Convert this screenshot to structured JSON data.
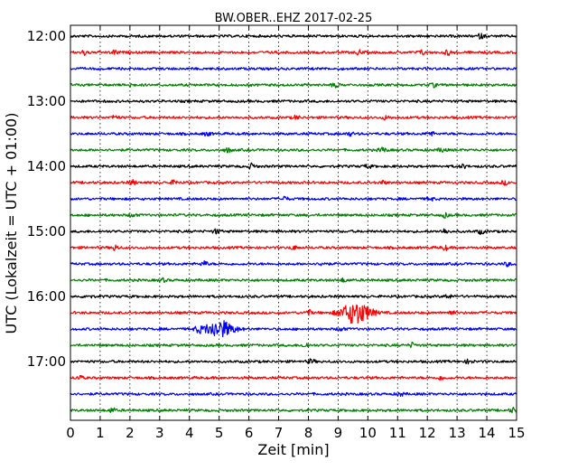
{
  "chart_data": {
    "type": "line",
    "subtype": "helicorder",
    "title": "BW.OBER..EHZ 2017-02-25",
    "xlabel": "Zeit  [min]",
    "ylabel": "UTC (Lokalzeit = UTC + 01:00)",
    "xlim": [
      0,
      15
    ],
    "x_ticks": [
      "0",
      "1",
      "2",
      "3",
      "4",
      "5",
      "6",
      "7",
      "8",
      "9",
      "10",
      "11",
      "12",
      "13",
      "14",
      "15"
    ],
    "y_ticks": [
      "12:00",
      "13:00",
      "14:00",
      "15:00",
      "16:00",
      "17:00"
    ],
    "trace_interval_min": 15,
    "grid": {
      "x": "dotted",
      "y": "none"
    },
    "colors": [
      "#000000",
      "#ff0000",
      "#0000ff",
      "#008000"
    ],
    "traces": [
      {
        "start": "12:00",
        "color": "#000000",
        "events": [
          [
            13.8,
            0.5
          ]
        ]
      },
      {
        "start": "12:15",
        "color": "#ff0000",
        "events": [
          [
            0.5,
            0.6
          ],
          [
            1.5,
            0.5
          ],
          [
            9.7,
            0.5
          ],
          [
            11.8,
            0.5
          ],
          [
            12.7,
            0.6
          ]
        ]
      },
      {
        "start": "12:30",
        "color": "#0000ff",
        "events": []
      },
      {
        "start": "12:45",
        "color": "#008000",
        "events": [
          [
            2.0,
            0.4
          ],
          [
            8.9,
            0.5
          ],
          [
            12.2,
            0.4
          ]
        ]
      },
      {
        "start": "13:00",
        "color": "#000000",
        "events": []
      },
      {
        "start": "13:15",
        "color": "#ff0000",
        "events": [
          [
            1.5,
            0.5
          ],
          [
            7.6,
            0.4
          ],
          [
            10.6,
            0.4
          ]
        ]
      },
      {
        "start": "13:30",
        "color": "#0000ff",
        "events": [
          [
            4.6,
            0.4
          ],
          [
            9.4,
            0.4
          ],
          [
            12.1,
            0.5
          ]
        ]
      },
      {
        "start": "13:45",
        "color": "#008000",
        "events": [
          [
            5.3,
            0.5
          ],
          [
            10.5,
            0.6
          ],
          [
            12.5,
            0.5
          ]
        ]
      },
      {
        "start": "14:00",
        "color": "#000000",
        "events": [
          [
            6.1,
            0.6
          ],
          [
            10.0,
            0.4
          ],
          [
            13.2,
            0.4
          ]
        ]
      },
      {
        "start": "14:15",
        "color": "#ff0000",
        "events": [
          [
            2.1,
            0.5
          ],
          [
            3.5,
            0.5
          ],
          [
            10.5,
            0.4
          ],
          [
            14.6,
            0.4
          ]
        ]
      },
      {
        "start": "14:30",
        "color": "#0000ff",
        "events": [
          [
            7.2,
            0.5
          ],
          [
            12.1,
            0.4
          ]
        ]
      },
      {
        "start": "14:45",
        "color": "#008000",
        "events": [
          [
            2.1,
            0.4
          ],
          [
            12.6,
            0.5
          ]
        ]
      },
      {
        "start": "15:00",
        "color": "#000000",
        "events": [
          [
            4.9,
            0.5
          ],
          [
            12.6,
            0.6
          ],
          [
            13.8,
            0.5
          ]
        ]
      },
      {
        "start": "15:15",
        "color": "#ff0000",
        "events": [
          [
            1.5,
            0.6
          ],
          [
            7.5,
            0.4
          ],
          [
            12.6,
            0.5
          ]
        ]
      },
      {
        "start": "15:30",
        "color": "#0000ff",
        "events": [
          [
            4.5,
            0.6
          ],
          [
            8.5,
            0.5
          ],
          [
            14.7,
            0.4
          ]
        ]
      },
      {
        "start": "15:45",
        "color": "#008000",
        "events": [
          [
            3.1,
            0.4
          ],
          [
            9.2,
            0.4
          ]
        ]
      },
      {
        "start": "16:00",
        "color": "#000000",
        "events": [
          [
            0.6,
            0.4
          ],
          [
            12.7,
            0.5
          ]
        ]
      },
      {
        "start": "16:15",
        "color": "#ff0000",
        "events": [
          [
            9.6,
            2.6
          ],
          [
            8.0,
            0.6
          ],
          [
            12.8,
            0.5
          ]
        ]
      },
      {
        "start": "16:30",
        "color": "#0000ff",
        "events": [
          [
            5.0,
            2.0
          ],
          [
            4.3,
            0.6
          ],
          [
            9.1,
            0.5
          ]
        ]
      },
      {
        "start": "16:45",
        "color": "#008000",
        "events": [
          [
            7.9,
            0.5
          ],
          [
            11.5,
            0.5
          ]
        ]
      },
      {
        "start": "17:00",
        "color": "#000000",
        "events": [
          [
            8.1,
            0.5
          ],
          [
            13.4,
            0.5
          ]
        ]
      },
      {
        "start": "17:15",
        "color": "#ff0000",
        "events": [
          [
            0.3,
            0.5
          ],
          [
            12.5,
            0.5
          ]
        ]
      },
      {
        "start": "17:30",
        "color": "#0000ff",
        "events": [
          [
            11.1,
            0.4
          ]
        ]
      },
      {
        "start": "17:45",
        "color": "#008000",
        "events": [
          [
            1.4,
            0.5
          ],
          [
            14.9,
            0.6
          ]
        ]
      }
    ]
  }
}
